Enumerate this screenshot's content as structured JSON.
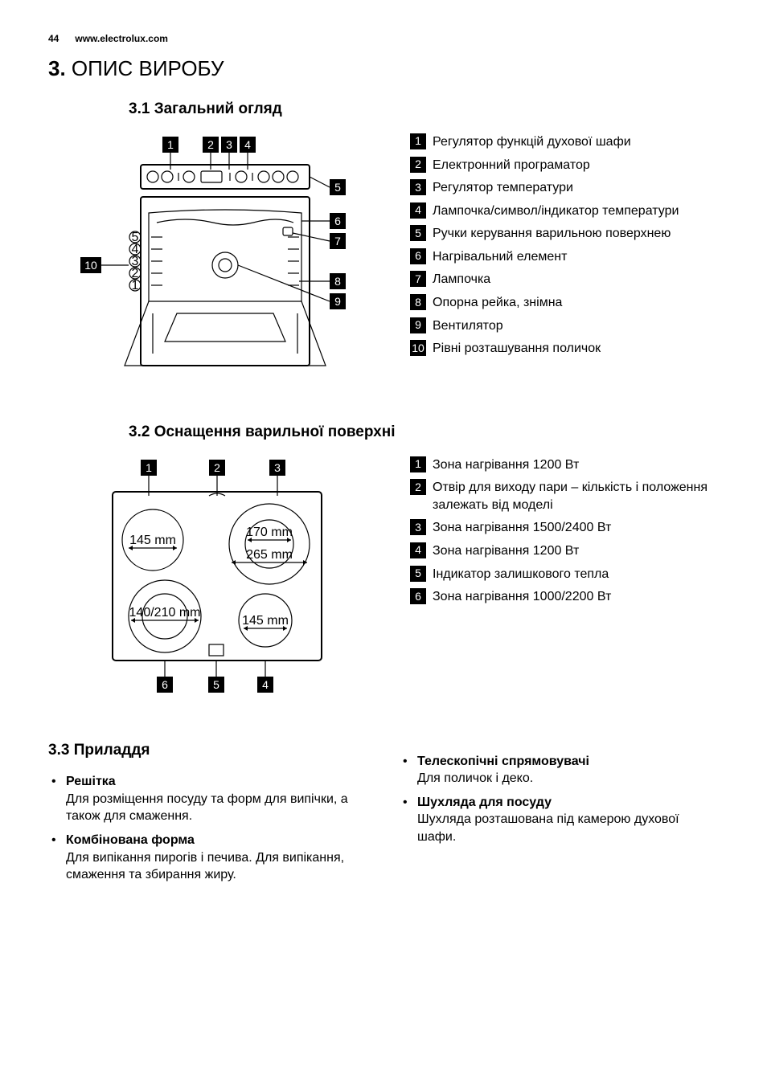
{
  "header": {
    "page_number": "44",
    "site": "www.electrolux.com"
  },
  "main_title": {
    "num": "3.",
    "text": "ОПИС ВИРОБУ"
  },
  "section_31": {
    "num": "3.1",
    "title": "Загальний огляд",
    "legend": [
      {
        "n": "1",
        "t": "Регулятор функцій духової шафи"
      },
      {
        "n": "2",
        "t": "Електронний програматор"
      },
      {
        "n": "3",
        "t": "Регулятор температури"
      },
      {
        "n": "4",
        "t": "Лампочка/символ/індикатор температури"
      },
      {
        "n": "5",
        "t": "Ручки керування варильною поверхнею"
      },
      {
        "n": "6",
        "t": "Нагрівальний елемент"
      },
      {
        "n": "7",
        "t": "Лампочка"
      },
      {
        "n": "8",
        "t": "Опорна рейка, знімна"
      },
      {
        "n": "9",
        "t": "Вентилятор"
      },
      {
        "n": "10",
        "t": "Рівні розташування поличок"
      }
    ],
    "diagram": {
      "top_callouts": [
        "1",
        "2",
        "3",
        "4"
      ],
      "right_callouts": [
        "5",
        "6",
        "7",
        "8",
        "9"
      ],
      "left_callout": "10",
      "shelf_labels": [
        "5",
        "4",
        "3",
        "2",
        "1"
      ]
    }
  },
  "section_32": {
    "num": "3.2",
    "title": "Оснащення варильної поверхні",
    "legend": [
      {
        "n": "1",
        "t": "Зона нагрівання 1200 Вт"
      },
      {
        "n": "2",
        "t": "Отвір для виходу пари – кількість і положення залежать від моделі"
      },
      {
        "n": "3",
        "t": "Зона нагрівання 1500/2400 Вт"
      },
      {
        "n": "4",
        "t": "Зона нагрівання 1200 Вт"
      },
      {
        "n": "5",
        "t": "Індикатор залишкового тепла"
      },
      {
        "n": "6",
        "t": "Зона нагрівання 1000/2200 Вт"
      }
    ],
    "diagram": {
      "top_callouts": [
        "1",
        "2",
        "3"
      ],
      "bottom_callouts": [
        "6",
        "5",
        "4"
      ],
      "zone_labels": {
        "tl": "145 mm",
        "tr1": "170 mm",
        "tr2": "265 mm",
        "bl": "140/210 mm",
        "br": "145 mm"
      }
    }
  },
  "section_33": {
    "num": "3.3",
    "title": "Приладдя",
    "left": [
      {
        "title": "Решітка",
        "body": "Для розміщення посуду та форм для випічки, а також для смаження."
      },
      {
        "title": "Комбінована форма",
        "body": "Для випікання пирогів і печива. Для випікання, смаження та збирання жиру."
      }
    ],
    "right": [
      {
        "title": "Телескопічні спрямовувачі",
        "body": "Для поличок і деко."
      },
      {
        "title": "Шухляда для посуду",
        "body": "Шухляда розташована під камерою духової шафи."
      }
    ]
  }
}
